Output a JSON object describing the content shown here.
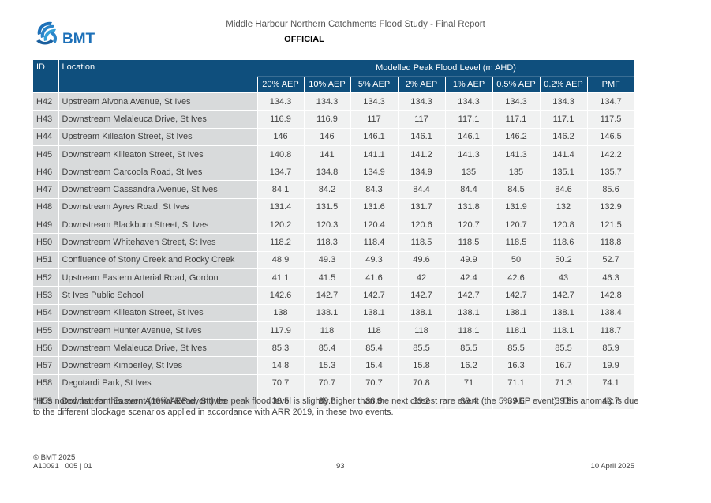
{
  "header": {
    "logo_text": "BMT",
    "title": "Middle Harbour Northern Catchments Flood Study - Final Report",
    "classification": "OFFICIAL"
  },
  "table": {
    "col_id": "ID",
    "col_location": "Location",
    "group_header": "Modelled Peak Flood Level (m AHD)",
    "value_columns": [
      "20% AEP",
      "10% AEP",
      "5% AEP",
      "2% AEP",
      "1% AEP",
      "0.5% AEP",
      "0.2% AEP",
      "PMF"
    ],
    "rows": [
      {
        "id": "H42",
        "location": "Upstream Alvona Avenue, St Ives",
        "values": [
          "134.3",
          "134.3",
          "134.3",
          "134.3",
          "134.3",
          "134.3",
          "134.3",
          "134.7"
        ]
      },
      {
        "id": "H43",
        "location": "Downstream Melaleuca Drive, St Ives",
        "values": [
          "116.9",
          "116.9",
          "117",
          "117",
          "117.1",
          "117.1",
          "117.1",
          "117.5"
        ]
      },
      {
        "id": "H44",
        "location": "Upstream Killeaton Street, St Ives",
        "values": [
          "146",
          "146",
          "146.1",
          "146.1",
          "146.1",
          "146.2",
          "146.2",
          "146.5"
        ]
      },
      {
        "id": "H45",
        "location": "Downstream Killeaton Street, St Ives",
        "values": [
          "140.8",
          "141",
          "141.1",
          "141.2",
          "141.3",
          "141.3",
          "141.4",
          "142.2"
        ]
      },
      {
        "id": "H46",
        "location": "Downstream Carcoola Road, St Ives",
        "values": [
          "134.7",
          "134.8",
          "134.9",
          "134.9",
          "135",
          "135",
          "135.1",
          "135.7"
        ]
      },
      {
        "id": "H47",
        "location": "Downstream Cassandra Avenue, St Ives",
        "values": [
          "84.1",
          "84.2",
          "84.3",
          "84.4",
          "84.4",
          "84.5",
          "84.6",
          "85.6"
        ]
      },
      {
        "id": "H48",
        "location": "Downstream Ayres Road, St Ives",
        "values": [
          "131.4",
          "131.5",
          "131.6",
          "131.7",
          "131.8",
          "131.9",
          "132",
          "132.9"
        ]
      },
      {
        "id": "H49",
        "location": "Downstream Blackburn Street, St Ives",
        "values": [
          "120.2",
          "120.3",
          "120.4",
          "120.6",
          "120.7",
          "120.7",
          "120.8",
          "121.5"
        ]
      },
      {
        "id": "H50",
        "location": "Downstream Whitehaven Street, St Ives",
        "values": [
          "118.2",
          "118.3",
          "118.4",
          "118.5",
          "118.5",
          "118.5",
          "118.6",
          "118.8"
        ]
      },
      {
        "id": "H51",
        "location": "Confluence of Stony Creek and Rocky Creek",
        "values": [
          "48.9",
          "49.3",
          "49.3",
          "49.6",
          "49.9",
          "50",
          "50.2",
          "52.7"
        ]
      },
      {
        "id": "H52",
        "location": "Upstream Eastern Arterial Road, Gordon",
        "values": [
          "41.1",
          "41.5",
          "41.6",
          "42",
          "42.4",
          "42.6",
          "43",
          "46.3"
        ]
      },
      {
        "id": "H53",
        "location": "St Ives Public School",
        "values": [
          "142.6",
          "142.7",
          "142.7",
          "142.7",
          "142.7",
          "142.7",
          "142.7",
          "142.8"
        ]
      },
      {
        "id": "H54",
        "location": "Downstream Killeaton Street, St Ives",
        "values": [
          "138",
          "138.1",
          "138.1",
          "138.1",
          "138.1",
          "138.1",
          "138.1",
          "138.4"
        ]
      },
      {
        "id": "H55",
        "location": "Downstream Hunter Avenue, St Ives",
        "values": [
          "117.9",
          "118",
          "118",
          "118",
          "118.1",
          "118.1",
          "118.1",
          "118.7"
        ]
      },
      {
        "id": "H56",
        "location": "Downstream Melaleuca Drive, St Ives",
        "values": [
          "85.3",
          "85.4",
          "85.4",
          "85.5",
          "85.5",
          "85.5",
          "85.5",
          "85.9"
        ]
      },
      {
        "id": "H57",
        "location": "Downstream Kimberley, St Ives",
        "values": [
          "14.8",
          "15.3",
          "15.4",
          "15.8",
          "16.2",
          "16.3",
          "16.7",
          "19.9"
        ]
      },
      {
        "id": "H58",
        "location": "Degotardi Park, St Ives",
        "values": [
          "70.7",
          "70.7",
          "70.7",
          "70.8",
          "71",
          "71.1",
          "71.3",
          "74.1"
        ]
      },
      {
        "id": "H59",
        "location": "Downstream Eastern Arterial Road, St Ives",
        "values": [
          "38.5",
          "38.8",
          "38.9",
          "39.2",
          "39.4",
          "39.6",
          "39.9",
          "42.7"
        ]
      }
    ]
  },
  "note": "* It is noted that for this event (10% AEP event) the peak flood level is slightly higher than the next closest rare event (the 5% AEP event). This anomaly is due to the different blockage scenarios applied in accordance with ARR 2019, in these two events.",
  "footer": {
    "copyright": "© BMT 2025",
    "doc_ref": "A10091 | 005 | 01",
    "page_number": "93",
    "date": "10 April 2025"
  },
  "colors": {
    "header_blue": "#0f4f7d",
    "logo_blue": "#1d70b8",
    "id_column_grey": "#d8dadb",
    "value_cell_grey": "#f0f1f1"
  }
}
